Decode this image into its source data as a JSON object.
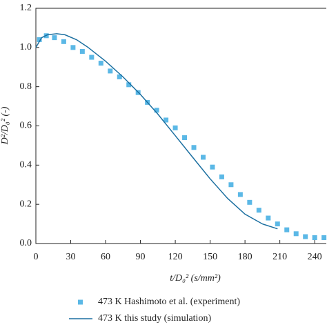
{
  "chart_data": {
    "type": "line",
    "xlabel": "t/D₀² (s/mm²)",
    "ylabel": "D²/D₀² (-)",
    "xlim": [
      0,
      250
    ],
    "ylim": [
      0,
      1.2
    ],
    "xticks": [
      0,
      30,
      60,
      90,
      120,
      150,
      180,
      210,
      240
    ],
    "yticks": [
      {
        "value": 0,
        "label": "0.0"
      },
      0.2,
      0.4,
      0.6,
      0.8,
      {
        "value": 1,
        "label": "1.0"
      },
      1.2
    ],
    "series": [
      {
        "name": "473 K Hashimoto et al. (experiment)",
        "type": "scatter",
        "color": "#5bb8e6",
        "x": [
          3,
          9,
          16,
          24,
          32,
          40,
          48,
          56,
          64,
          72,
          80,
          88,
          96,
          104,
          112,
          120,
          128,
          136,
          144,
          152,
          160,
          168,
          176,
          184,
          192,
          200,
          208,
          216,
          224,
          232,
          240,
          248
        ],
        "values": [
          1.04,
          1.06,
          1.05,
          1.03,
          1.0,
          0.98,
          0.95,
          0.92,
          0.88,
          0.85,
          0.81,
          0.77,
          0.72,
          0.68,
          0.63,
          0.59,
          0.54,
          0.49,
          0.44,
          0.39,
          0.34,
          0.3,
          0.25,
          0.21,
          0.17,
          0.13,
          0.1,
          0.07,
          0.05,
          0.035,
          0.03,
          0.03
        ]
      },
      {
        "name": "473 K this study (simulation)",
        "type": "line",
        "color": "#1b6fa0",
        "x": [
          0,
          5,
          10,
          18,
          25,
          35,
          45,
          60,
          75,
          90,
          105,
          120,
          135,
          150,
          165,
          180,
          195,
          208
        ],
        "values": [
          1.0,
          1.05,
          1.065,
          1.07,
          1.065,
          1.04,
          1.0,
          0.93,
          0.85,
          0.76,
          0.66,
          0.55,
          0.44,
          0.33,
          0.23,
          0.15,
          0.1,
          0.075
        ]
      }
    ]
  }
}
